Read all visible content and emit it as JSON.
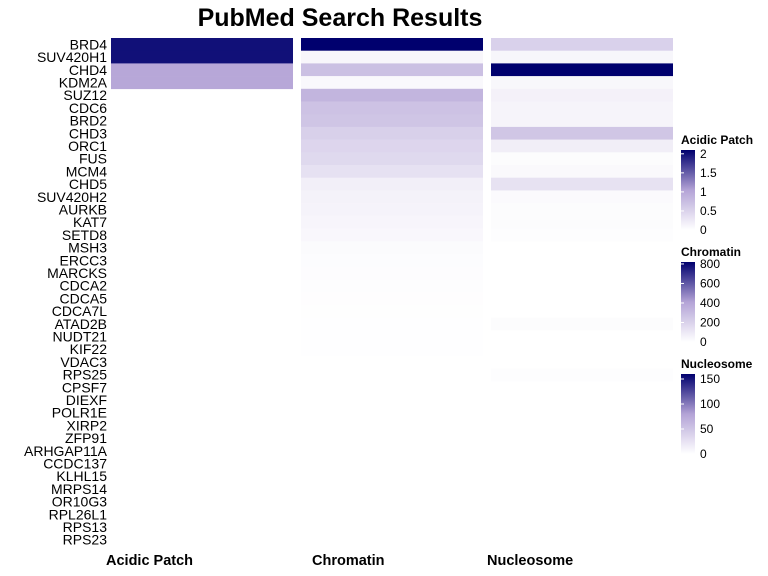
{
  "chart_data": {
    "type": "heatmap",
    "title": "PubMed Search Results",
    "columns": [
      "Acidic Patch",
      "Chromatin",
      "Nucleosome"
    ],
    "rows": [
      "BRD4",
      "SUV420H1",
      "CHD4",
      "KDM2A",
      "SUZ12",
      "CDC6",
      "BRD2",
      "CHD3",
      "ORC1",
      "FUS",
      "MCM4",
      "CHD5",
      "SUV420H2",
      "AURKB",
      "KAT7",
      "SETD8",
      "MSH3",
      "ERCC3",
      "MARCKS",
      "CDCA2",
      "CDCA5",
      "CDCA7L",
      "ATAD2B",
      "NUDT21",
      "KIF22",
      "VDAC3",
      "RPS25",
      "CPSF7",
      "DIEXF",
      "POLR1E",
      "XIRP2",
      "ZFP91",
      "ARHGAP11A",
      "CCDC137",
      "KLHL15",
      "MRPS14",
      "OR10G3",
      "RPL26L1",
      "RPS13",
      "RPS23"
    ],
    "values": {
      "Acidic Patch": [
        2,
        2,
        1,
        1,
        null,
        null,
        null,
        null,
        null,
        null,
        null,
        null,
        null,
        null,
        null,
        null,
        null,
        null,
        null,
        null,
        null,
        null,
        null,
        null,
        null,
        null,
        null,
        null,
        null,
        null,
        null,
        null,
        null,
        null,
        null,
        null,
        null,
        null,
        null,
        null
      ],
      "Chromatin": [
        820,
        40,
        280,
        30,
        330,
        270,
        260,
        210,
        185,
        170,
        135,
        70,
        60,
        55,
        45,
        35,
        20,
        14,
        12,
        10,
        8,
        6,
        5,
        4,
        3,
        2,
        null,
        null,
        null,
        null,
        null,
        null,
        null,
        null,
        null,
        null,
        null,
        null,
        null,
        null
      ],
      "Nucleosome": [
        40,
        8,
        160,
        7,
        12,
        10,
        10,
        50,
        15,
        3,
        5,
        25,
        4,
        3,
        3,
        2,
        null,
        null,
        null,
        null,
        null,
        null,
        3,
        null,
        null,
        null,
        2,
        null,
        null,
        null,
        null,
        null,
        null,
        null,
        null,
        null,
        null,
        null,
        null,
        null
      ]
    },
    "legends": [
      {
        "title": "Acidic Patch",
        "max": 2.1,
        "ticks": [
          {
            "v": 2,
            "label": "2"
          },
          {
            "v": 1.5,
            "label": "1.5"
          },
          {
            "v": 1,
            "label": "1"
          },
          {
            "v": 0.5,
            "label": "0.5"
          },
          {
            "v": 0,
            "label": "0"
          }
        ]
      },
      {
        "title": "Chromatin",
        "max": 820,
        "ticks": [
          {
            "v": 800,
            "label": "800"
          },
          {
            "v": 600,
            "label": "600"
          },
          {
            "v": 400,
            "label": "400"
          },
          {
            "v": 200,
            "label": "200"
          },
          {
            "v": 0,
            "label": "0"
          }
        ]
      },
      {
        "title": "Nucleosome",
        "max": 160,
        "ticks": [
          {
            "v": 150,
            "label": "150"
          },
          {
            "v": 100,
            "label": "100"
          },
          {
            "v": 50,
            "label": "50"
          },
          {
            "v": 0,
            "label": "0"
          }
        ]
      }
    ],
    "colors": {
      "low": "#ffffff",
      "mid": "#b3a3d6",
      "high": "#00006e"
    }
  }
}
